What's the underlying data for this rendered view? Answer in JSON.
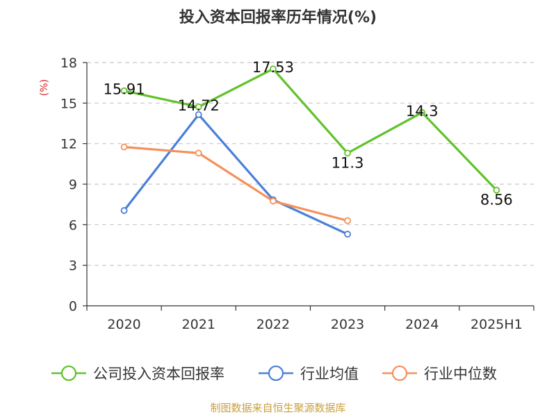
{
  "chart_data": {
    "type": "line",
    "title": "投入资本回报率历年情况(%)",
    "ylabel": "(%)",
    "xlabel": "",
    "categories": [
      "2020",
      "2021",
      "2022",
      "2023",
      "2024",
      "2025H1"
    ],
    "yticks": [
      "0",
      "3",
      "6",
      "9",
      "12",
      "15",
      "18"
    ],
    "ylim": [
      0,
      18
    ],
    "grid": true,
    "legend_position": "bottom",
    "series": [
      {
        "name": "公司投入资本回报率",
        "color": "#5fc229",
        "values": [
          15.91,
          14.72,
          17.53,
          11.3,
          14.3,
          8.56
        ],
        "labels": [
          "15.91",
          "14.72",
          "17.53",
          "11.3",
          "14.3",
          "8.56"
        ]
      },
      {
        "name": "行业均值",
        "color": "#4a7fd8",
        "values": [
          7.05,
          14.15,
          7.85,
          5.3,
          null,
          null
        ]
      },
      {
        "name": "行业中位数",
        "color": "#f5905a",
        "values": [
          11.75,
          11.3,
          7.75,
          6.3,
          null,
          null
        ]
      }
    ],
    "source": "制图数据来自恒生聚源数据库"
  }
}
